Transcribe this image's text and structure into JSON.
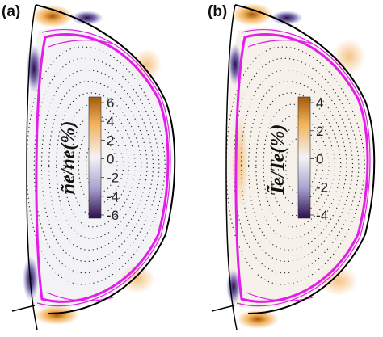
{
  "panels": [
    {
      "id": "a",
      "label": "(a)",
      "colorbar_title": "ñe/ne(%)",
      "colorbar_ticks": [
        "6",
        "4",
        "2",
        "0",
        "-2",
        "-4",
        "-6"
      ]
    },
    {
      "id": "b",
      "label": "(b)",
      "colorbar_title": "T̃e/Te(%)",
      "colorbar_ticks": [
        "4",
        "2",
        "0",
        "-2",
        "-4"
      ]
    }
  ],
  "colors": {
    "positive": "#a55a08",
    "positive_light": "#f2b25c",
    "neutral": "#f3f3f6",
    "negative_light": "#a9a3cf",
    "negative": "#2d0c4e",
    "separatrix": "#e21ee8",
    "wall": "#000000"
  }
}
